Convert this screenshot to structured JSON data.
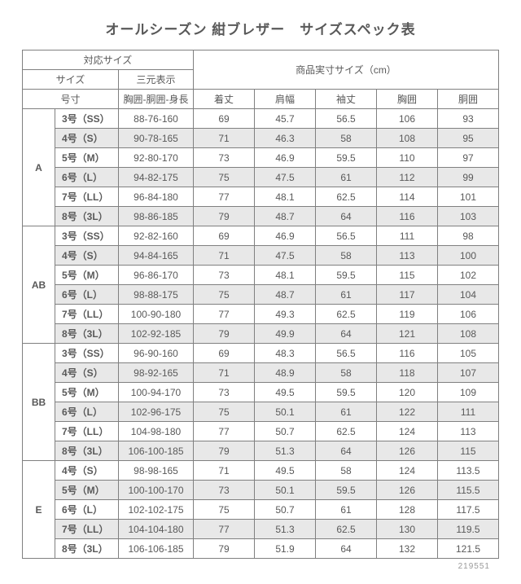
{
  "title": "オールシーズン 紺ブレザー　サイズスペック表",
  "headers": {
    "compat_size": "対応サイズ",
    "actual_size": "商品実寸サイズ（cm）",
    "size": "サイズ",
    "sangen": "三元表示",
    "gou": "号寸",
    "body_dims": "胸囲-胴囲-身長",
    "kitake": "着丈",
    "katahaba": "肩幅",
    "sodetake": "袖丈",
    "kyoui": "胸囲",
    "doui": "胴囲"
  },
  "groups": [
    {
      "name": "A",
      "rows": [
        {
          "size": "3号（SS）",
          "dims": "88-76-160",
          "m": [
            "69",
            "45.7",
            "56.5",
            "106",
            "93"
          ],
          "shade": false
        },
        {
          "size": "4号（S）",
          "dims": "90-78-165",
          "m": [
            "71",
            "46.3",
            "58",
            "108",
            "95"
          ],
          "shade": true
        },
        {
          "size": "5号（M）",
          "dims": "92-80-170",
          "m": [
            "73",
            "46.9",
            "59.5",
            "110",
            "97"
          ],
          "shade": false
        },
        {
          "size": "6号（L）",
          "dims": "94-82-175",
          "m": [
            "75",
            "47.5",
            "61",
            "112",
            "99"
          ],
          "shade": true
        },
        {
          "size": "7号（LL）",
          "dims": "96-84-180",
          "m": [
            "77",
            "48.1",
            "62.5",
            "114",
            "101"
          ],
          "shade": false
        },
        {
          "size": "8号（3L）",
          "dims": "98-86-185",
          "m": [
            "79",
            "48.7",
            "64",
            "116",
            "103"
          ],
          "shade": true
        }
      ]
    },
    {
      "name": "AB",
      "rows": [
        {
          "size": "3号（SS）",
          "dims": "92-82-160",
          "m": [
            "69",
            "46.9",
            "56.5",
            "111",
            "98"
          ],
          "shade": false
        },
        {
          "size": "4号（S）",
          "dims": "94-84-165",
          "m": [
            "71",
            "47.5",
            "58",
            "113",
            "100"
          ],
          "shade": true
        },
        {
          "size": "5号（M）",
          "dims": "96-86-170",
          "m": [
            "73",
            "48.1",
            "59.5",
            "115",
            "102"
          ],
          "shade": false
        },
        {
          "size": "6号（L）",
          "dims": "98-88-175",
          "m": [
            "75",
            "48.7",
            "61",
            "117",
            "104"
          ],
          "shade": true
        },
        {
          "size": "7号（LL）",
          "dims": "100-90-180",
          "m": [
            "77",
            "49.3",
            "62.5",
            "119",
            "106"
          ],
          "shade": false
        },
        {
          "size": "8号（3L）",
          "dims": "102-92-185",
          "m": [
            "79",
            "49.9",
            "64",
            "121",
            "108"
          ],
          "shade": true
        }
      ]
    },
    {
      "name": "BB",
      "rows": [
        {
          "size": "3号（SS）",
          "dims": "96-90-160",
          "m": [
            "69",
            "48.3",
            "56.5",
            "116",
            "105"
          ],
          "shade": false
        },
        {
          "size": "4号（S）",
          "dims": "98-92-165",
          "m": [
            "71",
            "48.9",
            "58",
            "118",
            "107"
          ],
          "shade": true
        },
        {
          "size": "5号（M）",
          "dims": "100-94-170",
          "m": [
            "73",
            "49.5",
            "59.5",
            "120",
            "109"
          ],
          "shade": false
        },
        {
          "size": "6号（L）",
          "dims": "102-96-175",
          "m": [
            "75",
            "50.1",
            "61",
            "122",
            "111"
          ],
          "shade": true
        },
        {
          "size": "7号（LL）",
          "dims": "104-98-180",
          "m": [
            "77",
            "50.7",
            "62.5",
            "124",
            "113"
          ],
          "shade": false
        },
        {
          "size": "8号（3L）",
          "dims": "106-100-185",
          "m": [
            "79",
            "51.3",
            "64",
            "126",
            "115"
          ],
          "shade": true
        }
      ]
    },
    {
      "name": "E",
      "rows": [
        {
          "size": "4号（S）",
          "dims": "98-98-165",
          "m": [
            "71",
            "49.5",
            "58",
            "124",
            "113.5"
          ],
          "shade": false
        },
        {
          "size": "5号（M）",
          "dims": "100-100-170",
          "m": [
            "73",
            "50.1",
            "59.5",
            "126",
            "115.5"
          ],
          "shade": true
        },
        {
          "size": "6号（L）",
          "dims": "102-102-175",
          "m": [
            "75",
            "50.7",
            "61",
            "128",
            "117.5"
          ],
          "shade": false
        },
        {
          "size": "7号（LL）",
          "dims": "104-104-180",
          "m": [
            "77",
            "51.3",
            "62.5",
            "130",
            "119.5"
          ],
          "shade": true
        },
        {
          "size": "8号（3L）",
          "dims": "106-106-185",
          "m": [
            "79",
            "51.9",
            "64",
            "132",
            "121.5"
          ],
          "shade": false
        }
      ]
    }
  ],
  "footer_id": "219551"
}
